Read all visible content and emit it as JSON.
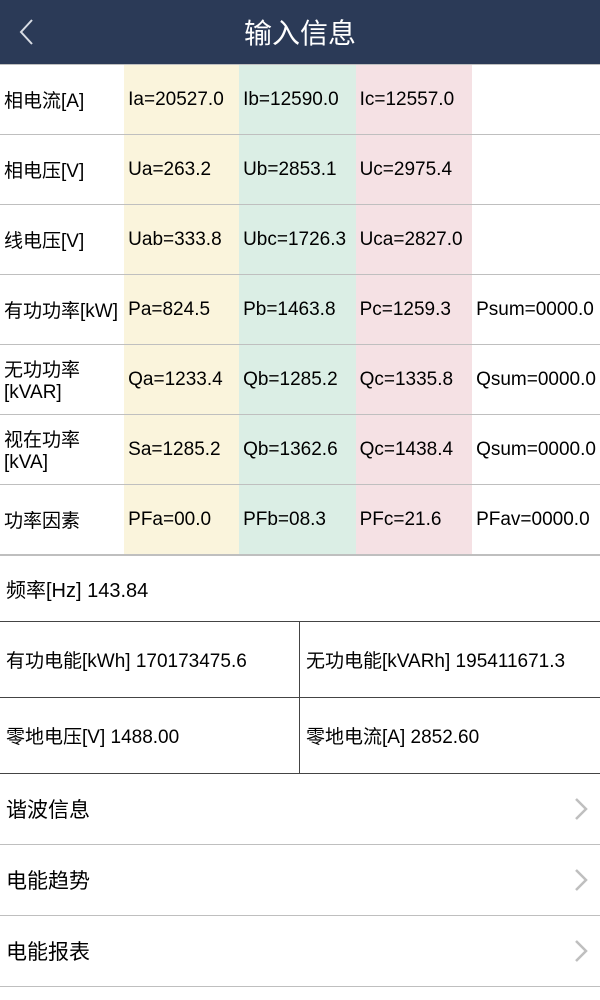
{
  "header": {
    "title": "输入信息"
  },
  "colors": {
    "header_bg": "#2b3a57",
    "col_a_bg": "#faf4dc",
    "col_b_bg": "#dbeee5",
    "col_c_bg": "#f5e1e4",
    "border": "#bfbfbf",
    "border_dark": "#444444"
  },
  "rows": [
    {
      "label": "相电流[A]",
      "a": "Ia=20527.0",
      "b": "Ib=12590.0",
      "c": "Ic=12557.0",
      "sum": ""
    },
    {
      "label": "相电压[V]",
      "a": "Ua=263.2",
      "b": "Ub=2853.1",
      "c": "Uc=2975.4",
      "sum": ""
    },
    {
      "label": "线电压[V]",
      "a": "Uab=333.8",
      "b": "Ubc=1726.3",
      "c": "Uca=2827.0",
      "sum": ""
    },
    {
      "label": "有功功率[kW]",
      "a": "Pa=824.5",
      "b": "Pb=1463.8",
      "c": "Pc=1259.3",
      "sum": "Psum=0000.0"
    },
    {
      "label": "无功功率[kVAR]",
      "a": "Qa=1233.4",
      "b": "Qb=1285.2",
      "c": "Qc=1335.8",
      "sum": "Qsum=0000.0"
    },
    {
      "label": "视在功率[kVA]",
      "a": "Sa=1285.2",
      "b": "Qb=1362.6",
      "c": "Qc=1438.4",
      "sum": "Qsum=0000.0"
    },
    {
      "label": "功率因素",
      "a": "PFa=00.0",
      "b": "PFb=08.3",
      "c": "PFc=21.6",
      "sum": "PFav=0000.0"
    }
  ],
  "freq": "频率[Hz] 143.84",
  "grid": {
    "a": "有功电能[kWh] 170173475.6",
    "b": "无功电能[kVARh] 195411671.3",
    "c": "零地电压[V] 1488.00",
    "d": "零地电流[A] 2852.60"
  },
  "nav": [
    {
      "label": "谐波信息"
    },
    {
      "label": "电能趋势"
    },
    {
      "label": "电能报表"
    }
  ]
}
